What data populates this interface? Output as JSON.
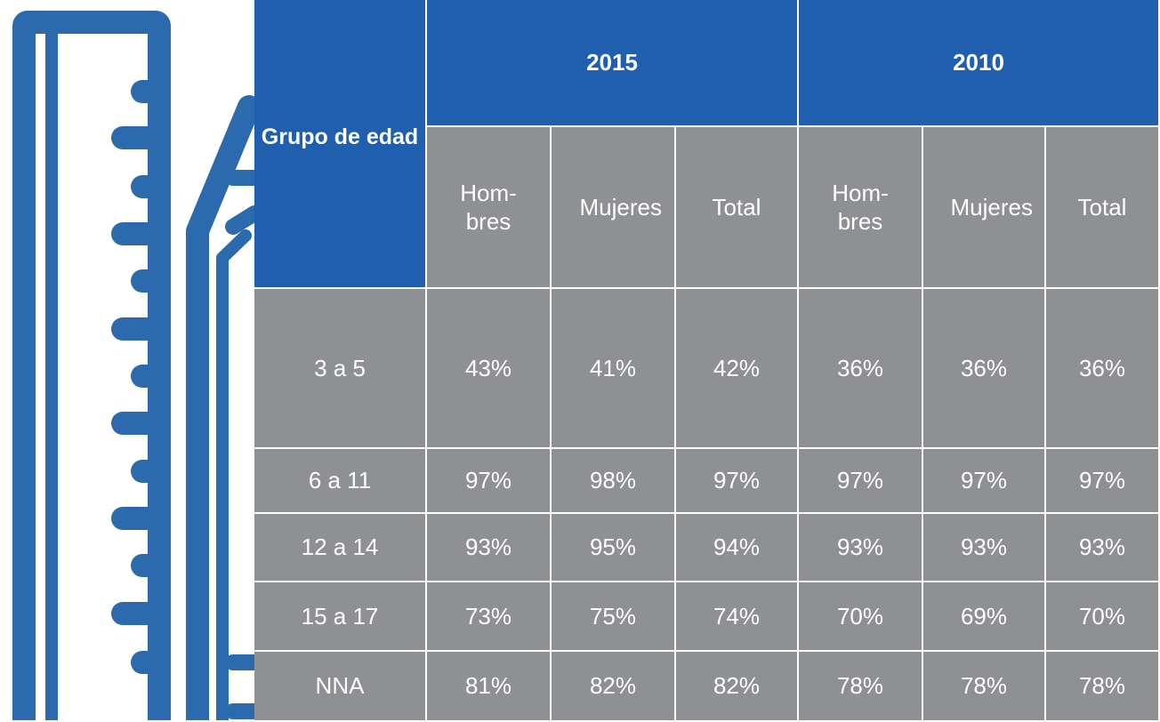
{
  "table": {
    "header": {
      "group": "Grupo de edad",
      "years": [
        "2015",
        "2010"
      ],
      "columns": [
        "Hom-bres",
        "Mujeres",
        "Total",
        "Hom-bres",
        "Mujeres",
        "Total"
      ]
    },
    "rows": [
      [
        "3 a 5",
        "43%",
        "41%",
        "42%",
        "36%",
        "36%",
        "36%"
      ],
      [
        "6 a 11",
        "97%",
        "98%",
        "97%",
        "97%",
        "97%",
        "97%"
      ],
      [
        "12 a 14",
        "93%",
        "95%",
        "94%",
        "93%",
        "93%",
        "93%"
      ],
      [
        "15 a 17",
        "73%",
        "75%",
        "74%",
        "70%",
        "69%",
        "70%"
      ],
      [
        "NNA",
        "81%",
        "82%",
        "82%",
        "78%",
        "78%",
        "78%"
      ]
    ]
  }
}
